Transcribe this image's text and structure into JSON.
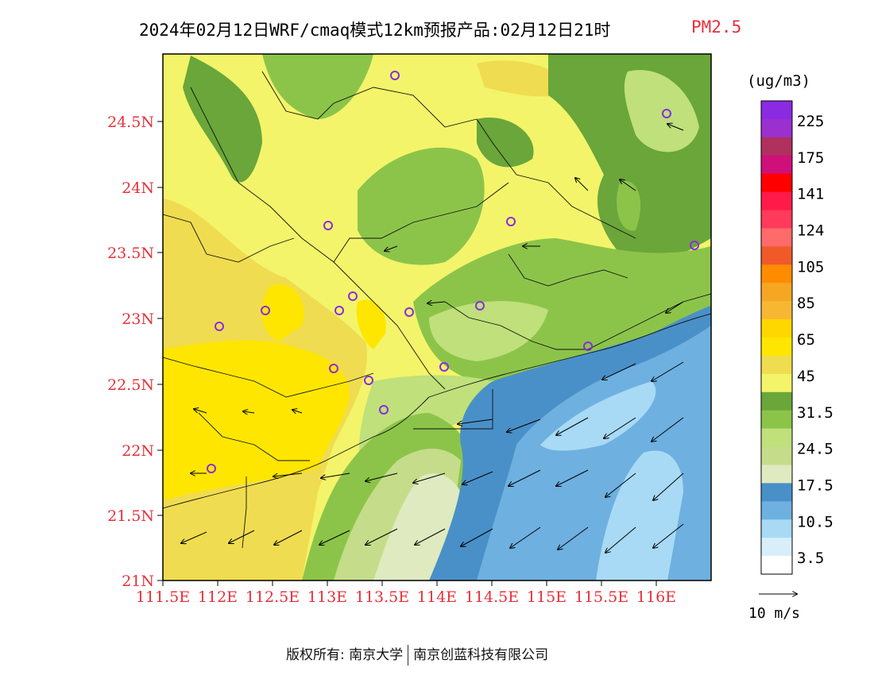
{
  "title": {
    "main": "2024年02月12日WRF/cmaq模式12km预报产品:02月12日21时",
    "species": "PM2.5"
  },
  "axes": {
    "y_ticks": [
      "24.5N",
      "24N",
      "23.5N",
      "23N",
      "22.5N",
      "22N",
      "21.5N",
      "21N"
    ],
    "x_ticks": [
      "111.5E",
      "112E",
      "112.5E",
      "113E",
      "113.5E",
      "114E",
      "114.5E",
      "115E",
      "115.5E",
      "116E"
    ],
    "tick_color": "#e8303a"
  },
  "legend": {
    "unit": "(ug/m3)",
    "labels": [
      "225",
      "175",
      "141",
      "124",
      "105",
      "85",
      "65",
      "45",
      "31.5",
      "24.5",
      "17.5",
      "10.5",
      "3.5"
    ],
    "colors": [
      "#8a2be2",
      "#9b30d0",
      "#b0305e",
      "#d0107a",
      "#ff0000",
      "#ff1a4a",
      "#ff3a5a",
      "#ff6a6a",
      "#f05a28",
      "#ff8c00",
      "#f5a623",
      "#f7b733",
      "#ffd700",
      "#ffe600",
      "#f0dc50",
      "#f3f46a",
      "#6aa63a",
      "#8cc44a",
      "#bfe07a",
      "#c5dd8a",
      "#dfeac0",
      "#4a90c8",
      "#6eb0e0",
      "#a8daf5",
      "#d8effa",
      "#ffffff"
    ]
  },
  "wind_scale": {
    "label": "10 m/s"
  },
  "copyright": {
    "left": "版权所有: 南京大学",
    "right": "南京创蓝科技有限公司"
  }
}
